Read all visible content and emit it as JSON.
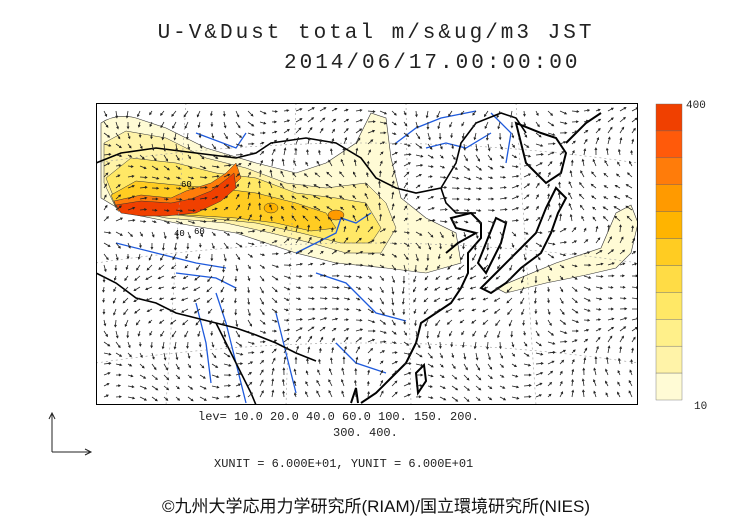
{
  "title": {
    "line1": "U-V&Dust total m/s&ug/m3 JST",
    "line2": "2014/06/17.00:00:00"
  },
  "colorbar": {
    "max_label": "400",
    "min_label": "10",
    "levels": [
      10,
      20,
      40,
      60,
      100,
      150,
      200,
      300,
      400
    ],
    "colors": [
      "#fffbd5",
      "#fff3a8",
      "#fff08a",
      "#ffe866",
      "#ffdc45",
      "#ffcc22",
      "#ffb400",
      "#ff9a00",
      "#ff7c0a",
      "#ff5a0a",
      "#f04000"
    ]
  },
  "legend": {
    "lev_line1": "lev= 10.0 20.0 40.0 60.0 100. 150. 200.",
    "lev_line2": "300. 400.",
    "unit_line": "XUNIT = 6.000E+01, YUNIT = 6.000E+01"
  },
  "map": {
    "contour_labels": [
      "40",
      "60",
      "60"
    ],
    "colors": {
      "coast": "#000000",
      "river": "#1e5adc",
      "border": "#000000",
      "grid": "#999999",
      "wind": "#222222"
    }
  },
  "credit": "©九州大学応用力学研究所(RIAM)/国立環境研究所(NIES)"
}
